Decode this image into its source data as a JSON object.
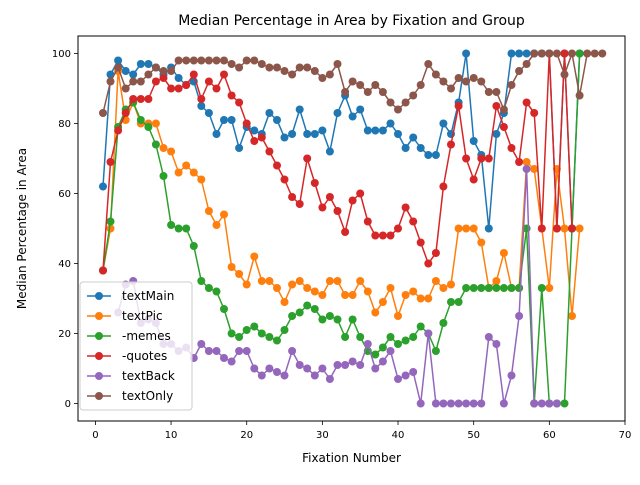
{
  "chart_data": {
    "type": "line",
    "title": "Median Percentage in Area by Fixation and Group",
    "xlabel": "Fixation Number",
    "ylabel": "Median Percentage in Area",
    "xlim": [
      -2.3,
      70
    ],
    "ylim": [
      -5,
      105
    ],
    "xticks": [
      0,
      10,
      20,
      30,
      40,
      50,
      60,
      70
    ],
    "yticks": [
      0,
      20,
      40,
      60,
      80,
      100
    ],
    "grid": false,
    "legend_position": "lower-left",
    "series": [
      {
        "name": "textMain",
        "color": "#1f77b4",
        "x": [
          1,
          2,
          3,
          4,
          5,
          6,
          7,
          8,
          9,
          10,
          11,
          12,
          13,
          14,
          15,
          16,
          17,
          18,
          19,
          20,
          21,
          22,
          23,
          24,
          25,
          26,
          27,
          28,
          29,
          30,
          31,
          32,
          33,
          34,
          35,
          36,
          37,
          38,
          39,
          40,
          41,
          42,
          43,
          44,
          45,
          46,
          47,
          48,
          49,
          50,
          51,
          52,
          53,
          54,
          55,
          56,
          57,
          58,
          59,
          60,
          61,
          62,
          63,
          64
        ],
        "y": [
          62,
          94,
          98,
          95,
          94,
          97,
          97,
          96,
          94,
          96,
          93,
          91,
          92,
          85,
          83,
          77,
          81,
          81,
          73,
          79,
          78,
          77,
          83,
          81,
          76,
          77,
          84,
          77,
          77,
          78,
          72,
          83,
          88,
          82,
          84,
          78,
          78,
          78,
          80,
          77,
          73,
          76,
          73,
          71,
          71,
          80,
          77,
          86,
          100,
          75,
          71,
          50,
          77,
          83,
          100,
          100,
          100,
          100,
          100,
          100,
          50,
          100,
          50,
          100
        ]
      },
      {
        "name": "textPic",
        "color": "#ff7f0e",
        "x": [
          1,
          2,
          3,
          4,
          5,
          6,
          7,
          8,
          9,
          10,
          11,
          12,
          13,
          14,
          15,
          16,
          17,
          18,
          19,
          20,
          21,
          22,
          23,
          24,
          25,
          26,
          27,
          28,
          29,
          30,
          31,
          32,
          33,
          34,
          35,
          36,
          37,
          38,
          39,
          40,
          41,
          42,
          43,
          44,
          45,
          46,
          47,
          48,
          49,
          50,
          51,
          52,
          53,
          54,
          55,
          56,
          57,
          58,
          59,
          60,
          61,
          62,
          63,
          64
        ],
        "y": [
          38,
          50,
          95,
          81,
          86,
          80,
          80,
          80,
          73,
          72,
          66,
          68,
          66,
          64,
          55,
          51,
          54,
          39,
          37,
          34,
          42,
          35,
          35,
          33,
          29,
          34,
          35,
          33,
          32,
          31,
          35,
          35,
          31,
          31,
          35,
          32,
          26,
          29,
          33,
          25,
          31,
          32,
          30,
          30,
          35,
          33,
          34,
          50,
          50,
          50,
          46,
          33,
          35,
          43,
          33,
          33,
          69,
          67,
          50,
          33,
          67,
          50,
          25,
          50
        ]
      },
      {
        "name": "-memes",
        "color": "#2ca02c",
        "x": [
          1,
          2,
          3,
          4,
          5,
          6,
          7,
          8,
          9,
          10,
          11,
          12,
          13,
          14,
          15,
          16,
          17,
          18,
          19,
          20,
          21,
          22,
          23,
          24,
          25,
          26,
          27,
          28,
          29,
          30,
          31,
          32,
          33,
          34,
          35,
          36,
          37,
          38,
          39,
          40,
          41,
          42,
          43,
          44,
          45,
          46,
          47,
          48,
          49,
          50,
          51,
          52,
          53,
          54,
          55,
          56,
          57,
          58,
          59,
          60,
          61,
          62,
          63,
          64
        ],
        "y": [
          38,
          52,
          79,
          84,
          86,
          81,
          79,
          74,
          65,
          51,
          50,
          50,
          45,
          35,
          33,
          32,
          27,
          20,
          19,
          21,
          22,
          20,
          19,
          18,
          21,
          25,
          26,
          28,
          27,
          24,
          25,
          24,
          19,
          24,
          19,
          15,
          14,
          16,
          19,
          17,
          18,
          19,
          22,
          20,
          15,
          23,
          29,
          29,
          33,
          33,
          33,
          33,
          33,
          33,
          33,
          33,
          50,
          0,
          33,
          0,
          0,
          0,
          50,
          100
        ]
      },
      {
        "name": "-quotes",
        "color": "#d62728",
        "x": [
          1,
          2,
          3,
          4,
          5,
          6,
          7,
          8,
          9,
          10,
          11,
          12,
          13,
          14,
          15,
          16,
          17,
          18,
          19,
          20,
          21,
          22,
          23,
          24,
          25,
          26,
          27,
          28,
          29,
          30,
          31,
          32,
          33,
          34,
          35,
          36,
          37,
          38,
          39,
          40,
          41,
          42,
          43,
          44,
          45,
          46,
          47,
          48,
          49,
          50,
          51,
          52,
          53,
          54,
          55,
          56,
          57,
          58,
          59,
          60,
          61,
          62,
          63
        ],
        "y": [
          38,
          69,
          78,
          83,
          87,
          87,
          87,
          92,
          93,
          90,
          90,
          91,
          94,
          87,
          92,
          90,
          94,
          88,
          86,
          80,
          75,
          76,
          72,
          68,
          64,
          59,
          57,
          70,
          63,
          56,
          59,
          55,
          49,
          58,
          60,
          52,
          48,
          48,
          48,
          50,
          56,
          52,
          46,
          40,
          43,
          62,
          74,
          85,
          70,
          64,
          70,
          70,
          85,
          79,
          73,
          69,
          86,
          83,
          50,
          100,
          50,
          100,
          50
        ]
      },
      {
        "name": "textBack",
        "color": "#9467bd",
        "x": [
          3,
          4,
          5,
          6,
          7,
          8,
          9,
          10,
          11,
          12,
          13,
          14,
          15,
          16,
          17,
          18,
          19,
          20,
          21,
          22,
          23,
          24,
          25,
          26,
          27,
          28,
          29,
          30,
          31,
          32,
          33,
          34,
          35,
          36,
          37,
          38,
          39,
          40,
          41,
          42,
          43,
          44,
          45,
          46,
          47,
          48,
          49,
          50,
          51,
          52,
          53,
          54,
          55,
          56,
          57,
          58,
          59,
          60,
          61
        ],
        "y": [
          26,
          34,
          35,
          23,
          24,
          23,
          17,
          17,
          15,
          16,
          13,
          17,
          15,
          15,
          13,
          12,
          15,
          15,
          10,
          8,
          10,
          9,
          8,
          15,
          11,
          10,
          8,
          10,
          7,
          11,
          11,
          12,
          11,
          17,
          10,
          12,
          15,
          7,
          8,
          9,
          0,
          20,
          0,
          0,
          0,
          0,
          0,
          0,
          0,
          19,
          17,
          0,
          8,
          25,
          67,
          0,
          0,
          0,
          0
        ]
      },
      {
        "name": "textOnly",
        "color": "#8c564b",
        "x": [
          1,
          2,
          3,
          4,
          5,
          6,
          7,
          8,
          9,
          10,
          11,
          12,
          13,
          14,
          15,
          16,
          17,
          18,
          19,
          20,
          21,
          22,
          23,
          24,
          25,
          26,
          27,
          28,
          29,
          30,
          31,
          32,
          33,
          34,
          35,
          36,
          37,
          38,
          39,
          40,
          41,
          42,
          43,
          44,
          45,
          46,
          47,
          48,
          49,
          50,
          51,
          52,
          53,
          54,
          55,
          56,
          57,
          58,
          59,
          60,
          61,
          62,
          63,
          64,
          65,
          66,
          67
        ],
        "y": [
          83,
          92,
          96,
          90,
          92,
          92,
          94,
          96,
          95,
          95,
          98,
          98,
          98,
          98,
          98,
          98,
          98,
          97,
          96,
          98,
          98,
          97,
          96,
          96,
          95,
          94,
          96,
          96,
          95,
          93,
          94,
          97,
          89,
          92,
          91,
          89,
          91,
          89,
          86,
          84,
          86,
          88,
          91,
          97,
          94,
          92,
          90,
          93,
          92,
          93,
          92,
          89,
          89,
          84,
          91,
          95,
          97,
          100,
          100,
          100,
          100,
          94,
          100,
          88,
          100,
          100,
          100
        ]
      }
    ]
  }
}
